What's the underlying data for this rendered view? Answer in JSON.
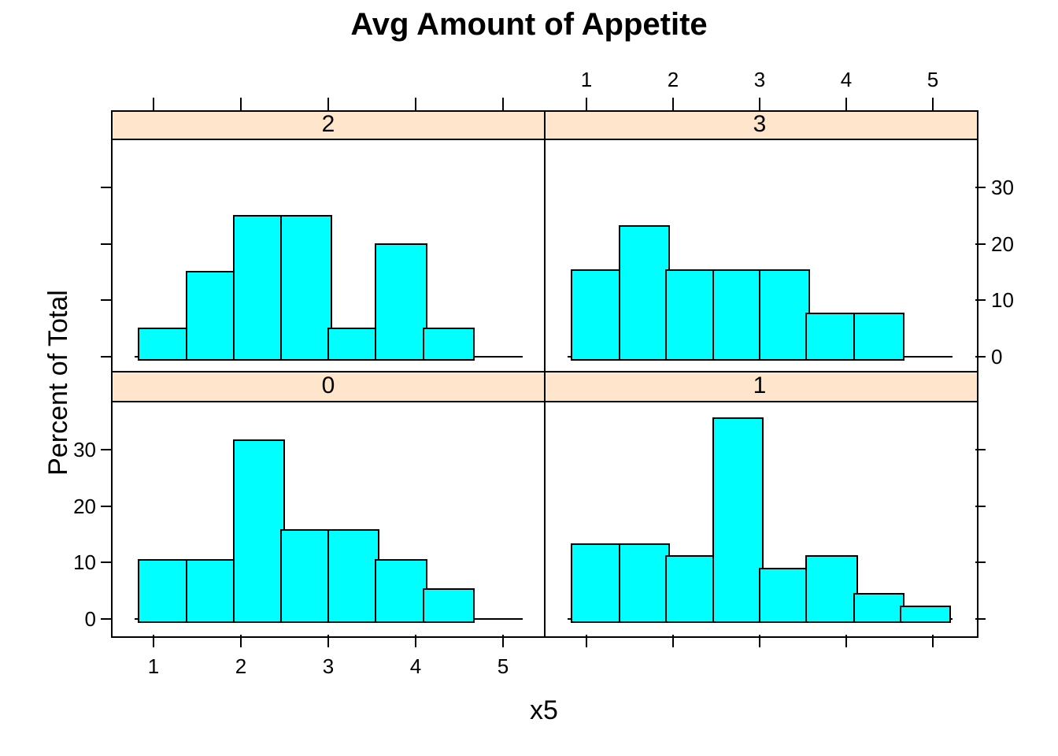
{
  "title": "Avg Amount of Appetite",
  "axis": {
    "x_label": "x5",
    "y_label": "Percent of Total",
    "x_tick_labels": [
      "1",
      "2",
      "3",
      "4",
      "5"
    ],
    "x_tick_values": [
      1,
      2,
      3,
      4,
      5
    ],
    "y_tick_labels": [
      "0",
      "10",
      "20",
      "30"
    ],
    "y_tick_values": [
      0,
      10,
      20,
      30
    ]
  },
  "colors": {
    "bar_fill": "#00FFFF",
    "bar_border": "#000000",
    "strip_background": "#FFE5CC",
    "panel_border": "#000000",
    "background": "#FFFFFF",
    "text": "#000000"
  },
  "chart_data": {
    "type": "bar",
    "subtype": "faceted-histogram",
    "title": "Avg Amount of Appetite",
    "xlabel": "x5",
    "ylabel": "Percent of Total",
    "xlim": [
      0.53,
      5.47
    ],
    "ylim": [
      -2.5,
      38.4
    ],
    "x_ticks": [
      1,
      2,
      3,
      4,
      5
    ],
    "y_ticks": [
      0,
      10,
      20,
      30
    ],
    "grid": "off",
    "facet_layout": [
      [
        "2",
        "3"
      ],
      [
        "0",
        "1"
      ]
    ],
    "panels": [
      {
        "strip_label": "2",
        "grid": "top-left",
        "bin_edges": [
          0.83,
          1.38,
          1.92,
          2.46,
          3.0,
          3.54,
          4.09,
          4.63
        ],
        "percent": [
          5,
          15,
          25,
          25,
          5,
          20,
          5
        ]
      },
      {
        "strip_label": "3",
        "grid": "top-right",
        "bin_edges": [
          0.83,
          1.38,
          1.92,
          2.46,
          3.0,
          3.54,
          4.09,
          4.63
        ],
        "percent": [
          15.4,
          23.1,
          15.4,
          15.4,
          15.4,
          7.7,
          7.7
        ]
      },
      {
        "strip_label": "0",
        "grid": "bottom-left",
        "bin_edges": [
          0.83,
          1.38,
          1.92,
          2.46,
          3.0,
          3.54,
          4.09,
          4.63
        ],
        "percent": [
          10.5,
          10.5,
          31.6,
          15.8,
          15.8,
          10.5,
          5.3
        ]
      },
      {
        "strip_label": "1",
        "grid": "bottom-right",
        "bin_edges": [
          0.83,
          1.38,
          1.92,
          2.46,
          3.0,
          3.54,
          4.09,
          4.63,
          5.17
        ],
        "percent": [
          13.3,
          13.3,
          11.1,
          35.6,
          8.9,
          11.1,
          4.4,
          2.2
        ]
      }
    ]
  }
}
